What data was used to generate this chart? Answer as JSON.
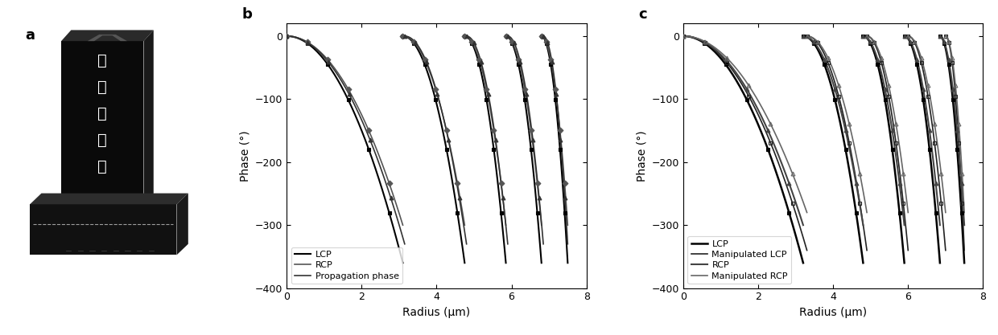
{
  "panel_b": {
    "xlabel": "Radius (μm)",
    "ylabel": "Phase (°)",
    "xlim": [
      0,
      8
    ],
    "ylim": [
      -400,
      20
    ],
    "yticks": [
      0,
      -100,
      -200,
      -300,
      -400
    ],
    "xticks": [
      0,
      2,
      4,
      6,
      8
    ]
  },
  "panel_c": {
    "xlabel": "Radius (μm)",
    "ylabel": "Phase (°)",
    "xlim": [
      0,
      8
    ],
    "ylim": [
      -400,
      20
    ],
    "yticks": [
      0,
      -100,
      -200,
      -300,
      -400
    ],
    "xticks": [
      0,
      2,
      4,
      6,
      8
    ]
  },
  "figure_bg": "#ffffff",
  "label_fontsize": 13,
  "tick_fontsize": 9,
  "axis_label_fontsize": 10,
  "legend_fontsize": 8
}
